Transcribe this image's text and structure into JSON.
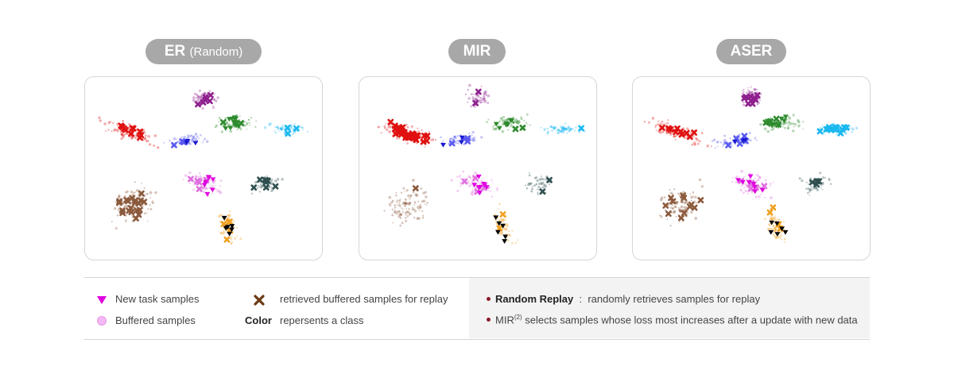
{
  "titles": [
    {
      "main": "ER",
      "sub": "(Random)"
    },
    {
      "main": "MIR",
      "sub": ""
    },
    {
      "main": "ASER",
      "sub": ""
    }
  ],
  "legend": {
    "new_task": "New task samples",
    "buffered": "Buffered samples",
    "retrieved": "retrieved buffered samples for replay",
    "color_word": "Color",
    "color_desc": "repersents a class",
    "random_replay_term": "Random Replay",
    "random_replay_sep": ":",
    "random_replay_desc": "randomly retrieves samples for replay",
    "mir_name": "MIR",
    "mir_ref": "(2)",
    "mir_desc": "selects samples whose loss most increases after a update with new data"
  },
  "colors": {
    "title_pill": "#a8a8a8",
    "new_task_marker": "#e000e0",
    "buffered_marker": "#f4b8f4",
    "retrieved_marker": "#6b3a12",
    "bullet": "#8b1a2b"
  },
  "classes": [
    {
      "color": "#e01010"
    },
    {
      "color": "#5a5af0"
    },
    {
      "color": "#8e1f8e"
    },
    {
      "color": "#2e8b2e"
    },
    {
      "color": "#1ab8f0"
    },
    {
      "color": "#e070e0"
    },
    {
      "color": "#2f4f4f"
    },
    {
      "color": "#8b5a3c"
    },
    {
      "color": "#f0a020"
    }
  ]
}
